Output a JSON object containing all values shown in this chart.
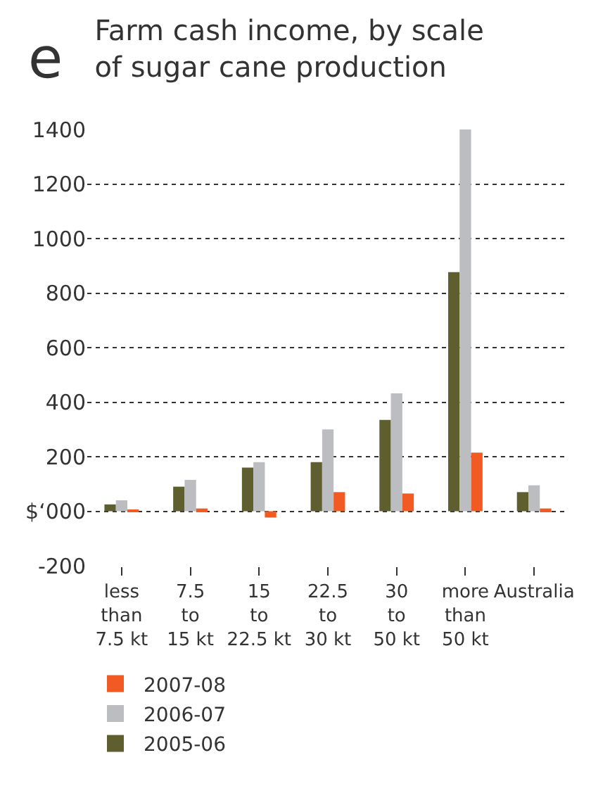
{
  "chart_data": {
    "type": "bar",
    "title": "Farm cash income, by scale\nof sugar cane production",
    "annotations": [
      "e"
    ],
    "categories": [
      "less\nthan\n7.5 kt",
      "7.5\nto\n15 kt",
      "15\nto\n22.5 kt",
      "22.5\nto\n30 kt",
      "30\nto\n50 kt",
      "more\nthan\n50 kt",
      "Australia"
    ],
    "series": [
      {
        "name": "2005-06",
        "color": "#5e5e2e",
        "values": [
          25,
          90,
          160,
          180,
          335,
          877,
          70
        ]
      },
      {
        "name": "2006-07",
        "color": "#bcbdc0",
        "values": [
          40,
          115,
          180,
          300,
          432,
          1400,
          95
        ]
      },
      {
        "name": "2007-08",
        "color": "#f15a22",
        "values": [
          5,
          10,
          -23,
          70,
          65,
          215,
          10
        ]
      }
    ],
    "ylim": [
      -200,
      1400
    ],
    "yticks": [
      -200,
      {
        "value": 0,
        "label": "$‘000"
      },
      200,
      400,
      600,
      800,
      1000,
      1200,
      1400
    ],
    "grid": "y",
    "legend": "bottom"
  }
}
